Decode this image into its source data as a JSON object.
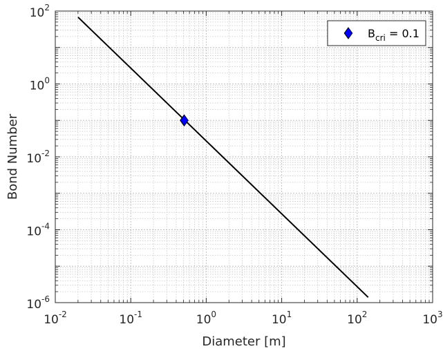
{
  "chart_data": {
    "type": "line",
    "xscale": "log",
    "yscale": "log",
    "xlim": [
      0.01,
      1000
    ],
    "ylim": [
      1e-06,
      100
    ],
    "xlabel": "Diameter [m]",
    "ylabel": "Bond Number",
    "x_ticks": [
      {
        "base": "10",
        "exp": "-2",
        "value": 0.01
      },
      {
        "base": "10",
        "exp": "-1",
        "value": 0.1
      },
      {
        "base": "10",
        "exp": "0",
        "value": 1
      },
      {
        "base": "10",
        "exp": "1",
        "value": 10
      },
      {
        "base": "10",
        "exp": "2",
        "value": 100
      },
      {
        "base": "10",
        "exp": "3",
        "value": 1000
      }
    ],
    "y_ticks": [
      {
        "base": "10",
        "exp": "-6",
        "value": 1e-06
      },
      {
        "base": "10",
        "exp": "-4",
        "value": 0.0001
      },
      {
        "base": "10",
        "exp": "-2",
        "value": 0.01
      },
      {
        "base": "10",
        "exp": "0",
        "value": 1
      },
      {
        "base": "10",
        "exp": "2",
        "value": 100
      }
    ],
    "grid": true,
    "minor_grid": true,
    "series": [
      {
        "kind": "line",
        "color": "#000000",
        "x": [
          0.02,
          140
        ],
        "y": [
          68,
          1.4e-06
        ]
      },
      {
        "kind": "marker",
        "marker": "diamond",
        "color": "#0000ff",
        "x": [
          0.51
        ],
        "y": [
          0.1
        ]
      }
    ],
    "legend": {
      "placement": "top-right",
      "entries": [
        {
          "marker": "diamond",
          "color": "#0000ff",
          "main": "B",
          "sub": "cri",
          "suffix": " = 0.1"
        }
      ]
    }
  }
}
